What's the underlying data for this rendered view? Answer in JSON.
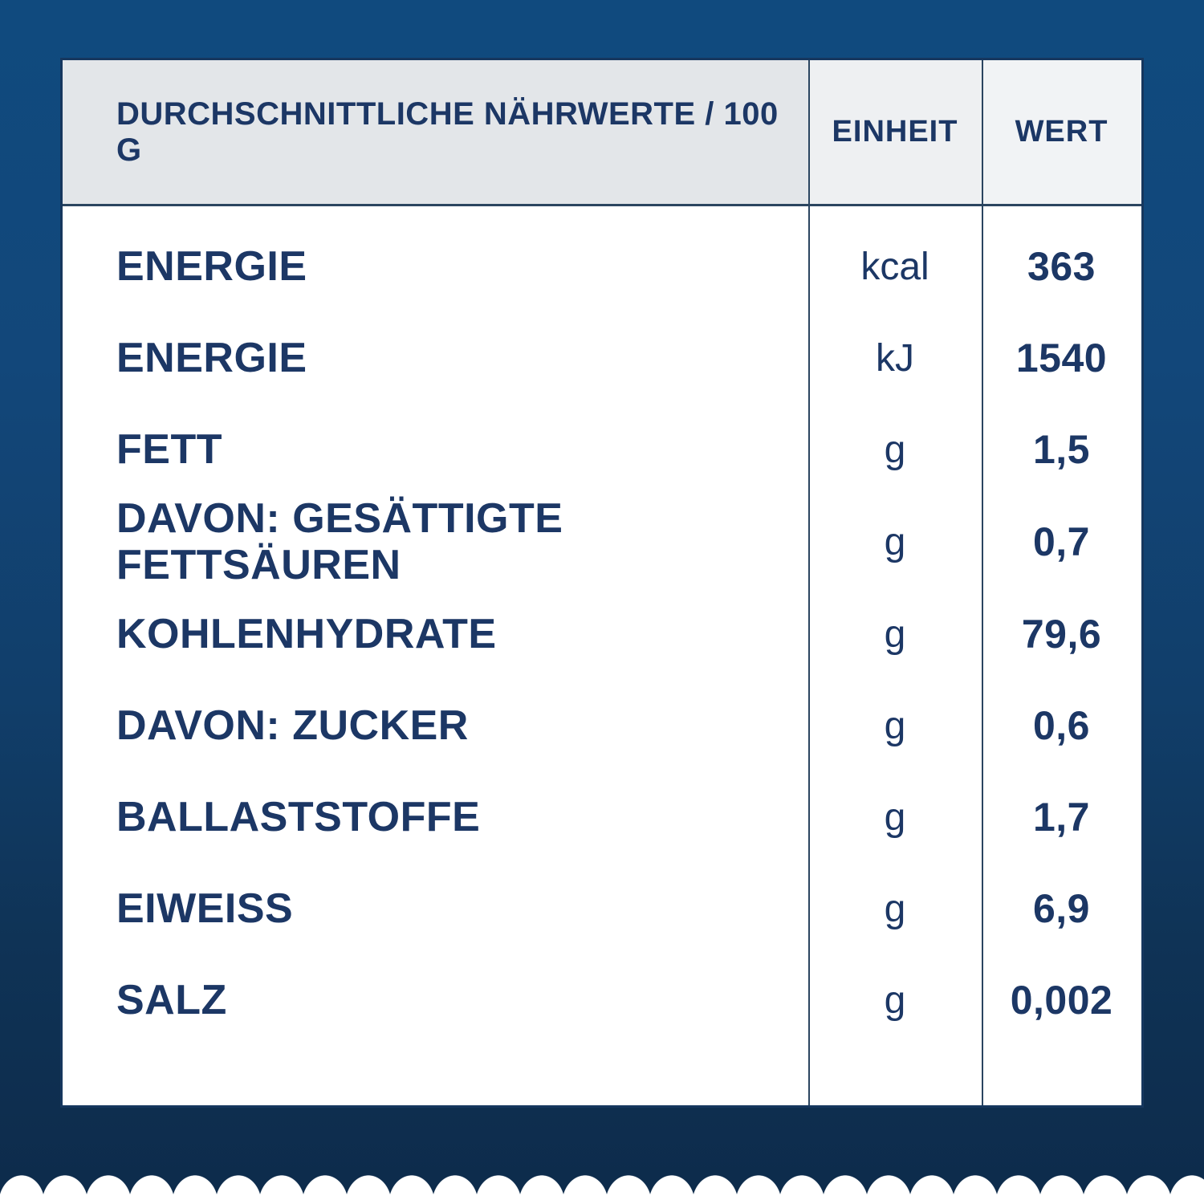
{
  "table": {
    "columns": [
      "DURCHSCHNITTLICHE NÄHRWERTE / 100 G",
      "EINHEIT",
      "WERT"
    ],
    "rows": [
      {
        "label": "ENERGIE",
        "unit": "kcal",
        "value": "363"
      },
      {
        "label": "ENERGIE",
        "unit": "kJ",
        "value": "1540"
      },
      {
        "label": "FETT",
        "unit": "g",
        "value": "1,5"
      },
      {
        "label": "DAVON: GESÄTTIGTE FETTSÄUREN",
        "unit": "g",
        "value": "0,7"
      },
      {
        "label": "KOHLENHYDRATE",
        "unit": "g",
        "value": "79,6"
      },
      {
        "label": "DAVON: ZUCKER",
        "unit": "g",
        "value": "0,6"
      },
      {
        "label": "BALLASTSTOFFE",
        "unit": "g",
        "value": "1,7"
      },
      {
        "label": "EIWEISS",
        "unit": "g",
        "value": "6,9"
      },
      {
        "label": "SALZ",
        "unit": "g",
        "value": "0,002"
      }
    ]
  },
  "colors": {
    "bg_top": "#104a7e",
    "bg_mid": "#113e6a",
    "bg_bottom": "#0d2b4b",
    "card_bg": "#ffffff",
    "card_border": "#16375e",
    "header_col1_bg": "#e3e6e9",
    "header_unit_bg": "#eef0f2",
    "header_value_bg": "#f1f3f5",
    "text": "#1c3765",
    "divider": "#2b4560",
    "scallop": "#ffffff"
  }
}
